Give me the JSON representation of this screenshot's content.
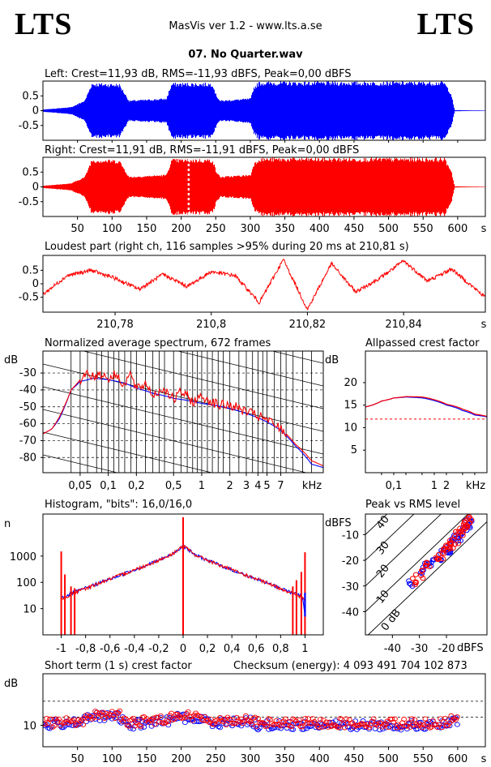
{
  "header": {
    "logo_left": "LTS",
    "logo_right": "LTS",
    "app_title": "MasVis ver 1.2 - www.lts.a.se",
    "file_title": "07. No Quarter.wav",
    "checksum": "Checksum (energy):  4 093 491 704 102 873"
  },
  "chart_data": [
    {
      "id": "left",
      "type": "area",
      "title": "Left: Crest=11,93 dB, RMS=-11,93 dBFS, Peak=0,00 dBFS",
      "color": "#0000ff",
      "yticks": [
        "0.5",
        "0",
        "-0.5"
      ],
      "ylim": [
        -1,
        1
      ],
      "xlim": [
        0,
        640
      ],
      "envelope_x": [
        0,
        40,
        60,
        70,
        110,
        118,
        124,
        178,
        182,
        186,
        245,
        250,
        256,
        300,
        304,
        312,
        580,
        590,
        595,
        640
      ],
      "envelope_amp": [
        0.04,
        0.12,
        0.35,
        0.95,
        0.92,
        0.6,
        0.35,
        0.42,
        0.7,
        0.95,
        0.95,
        0.55,
        0.35,
        0.42,
        0.8,
        0.99,
        0.99,
        0.6,
        0.02,
        0.0
      ]
    },
    {
      "id": "right",
      "type": "area",
      "title": "Right: Crest=11,91 dB, RMS=-11,91 dBFS, Peak=0,00 dBFS",
      "color": "#ff0000",
      "yticks": [
        "0.5",
        "0",
        "-0.5"
      ],
      "ylim": [
        -1,
        1
      ],
      "xlim": [
        0,
        640
      ],
      "envelope_x": [
        0,
        40,
        60,
        70,
        110,
        118,
        124,
        178,
        182,
        186,
        245,
        250,
        256,
        300,
        304,
        312,
        580,
        590,
        595,
        640
      ],
      "envelope_amp": [
        0.04,
        0.12,
        0.35,
        0.95,
        0.92,
        0.6,
        0.35,
        0.42,
        0.7,
        0.95,
        0.95,
        0.55,
        0.35,
        0.42,
        0.8,
        0.99,
        0.99,
        0.6,
        0.02,
        0.0
      ],
      "marker_x": 210.81,
      "xticks": [
        "50",
        "100",
        "150",
        "200",
        "250",
        "300",
        "350",
        "400",
        "450",
        "500",
        "550",
        "600"
      ],
      "xticks_values": [
        50,
        100,
        150,
        200,
        250,
        300,
        350,
        400,
        450,
        500,
        550,
        600
      ],
      "xunit": "s"
    },
    {
      "id": "loudest",
      "type": "line",
      "title": "Loudest part (right ch, 116 samples >95% during 20 ms at 210,81 s)",
      "color": "#ff0000",
      "xlim": [
        210.765,
        210.857
      ],
      "ylim": [
        -1,
        1
      ],
      "yticks": [
        "0.5",
        "0",
        "-0.5"
      ],
      "xticks": [
        "210,78",
        "210,8",
        "210,82",
        "210,84"
      ],
      "xticks_values": [
        210.78,
        210.8,
        210.82,
        210.84
      ],
      "xunit": "s",
      "x": [
        210.765,
        210.77,
        210.775,
        210.78,
        210.785,
        210.79,
        210.795,
        210.8,
        210.805,
        210.81,
        210.815,
        210.82,
        210.825,
        210.83,
        210.835,
        210.84,
        210.845,
        210.85,
        210.857
      ],
      "y": [
        -0.4,
        0.3,
        0.5,
        0.2,
        -0.2,
        0.35,
        -0.1,
        0.45,
        0.3,
        -0.7,
        0.9,
        -0.95,
        0.75,
        -0.3,
        0.2,
        0.85,
        0.1,
        0.55,
        -0.5
      ]
    },
    {
      "id": "spectrum",
      "type": "line",
      "title": "Normalized average spectrum, 672 frames",
      "ylabel": "dB",
      "yticks": [
        "-30",
        "-40",
        "-50",
        "-60",
        "-70",
        "-80"
      ],
      "yticks_values": [
        -30,
        -40,
        -50,
        -60,
        -70,
        -80
      ],
      "ylim": [
        -89,
        -17
      ],
      "xlim": [
        0.02,
        20
      ],
      "xscale": "log",
      "xticks": [
        "0,05",
        "0,1",
        "0,2",
        "0,5",
        "1",
        "2",
        "3",
        "4",
        "5",
        "7"
      ],
      "xticks_values": [
        0.05,
        0.1,
        0.2,
        0.5,
        1,
        2,
        3,
        4,
        5,
        7
      ],
      "xunit": "kHz",
      "series": [
        {
          "color": "#0000ff",
          "x": [
            0.02,
            0.025,
            0.03,
            0.04,
            0.05,
            0.07,
            0.1,
            0.15,
            0.2,
            0.3,
            0.5,
            1,
            2,
            3,
            5,
            7,
            10,
            15,
            20
          ],
          "y": [
            -66,
            -63,
            -57,
            -40,
            -35,
            -33,
            -34,
            -36,
            -39,
            -42,
            -45,
            -48,
            -51,
            -54,
            -59,
            -64,
            -73,
            -84,
            -86
          ]
        },
        {
          "color": "#ff0000",
          "x": [
            0.02,
            0.025,
            0.03,
            0.04,
            0.05,
            0.06,
            0.07,
            0.08,
            0.1,
            0.12,
            0.15,
            0.17,
            0.2,
            0.25,
            0.3,
            0.4,
            0.5,
            0.6,
            0.8,
            1,
            1.5,
            2,
            3,
            5,
            7,
            10,
            15,
            20
          ],
          "y": [
            -66,
            -63,
            -56,
            -40,
            -34,
            -29,
            -33,
            -30,
            -33,
            -31,
            -37,
            -30,
            -40,
            -36,
            -43,
            -39,
            -46,
            -41,
            -47,
            -44,
            -49,
            -49,
            -53,
            -58,
            -63,
            -72,
            -82,
            -85
          ]
        }
      ]
    },
    {
      "id": "allpass",
      "type": "line",
      "title": "Allpassed crest factor",
      "ylabel": "dB",
      "yticks": [
        "20",
        "15",
        "10",
        "5"
      ],
      "yticks_values": [
        20,
        15,
        10,
        5
      ],
      "ylim": [
        0,
        27
      ],
      "xlim": [
        0.02,
        20
      ],
      "xscale": "log",
      "xticks": [
        "0,1",
        "1",
        "2"
      ],
      "xticks_values": [
        0.1,
        1,
        2
      ],
      "xunit": "kHz",
      "reference_level": 11.9,
      "series": [
        {
          "color": "#0000ff",
          "x": [
            0.02,
            0.05,
            0.1,
            0.2,
            0.5,
            1,
            2,
            5,
            10,
            20
          ],
          "y": [
            14.6,
            15.9,
            16.6,
            16.8,
            16.6,
            16.0,
            15.0,
            13.8,
            12.8,
            12.4
          ]
        },
        {
          "color": "#ff0000",
          "x": [
            0.02,
            0.05,
            0.1,
            0.2,
            0.5,
            1,
            2,
            5,
            10,
            20
          ],
          "y": [
            14.6,
            15.9,
            16.6,
            16.9,
            16.8,
            16.2,
            15.2,
            14.1,
            13.0,
            12.5
          ]
        }
      ]
    },
    {
      "id": "histogram",
      "type": "line",
      "title": "Histogram, \"bits\": 16,0/16,0",
      "ylabel": "n",
      "yscale": "log",
      "yticks": [
        "1000",
        "100",
        "10"
      ],
      "yticks_values": [
        1000,
        100,
        10
      ],
      "ylim": [
        1,
        40000
      ],
      "xlim": [
        -1.15,
        1.15
      ],
      "xticks": [
        "-1",
        "-0,8",
        "-0,6",
        "-0,4",
        "-0,2",
        "0",
        "0,2",
        "0,4",
        "0,6",
        "0,8",
        "1"
      ],
      "xticks_values": [
        -1,
        -0.8,
        -0.6,
        -0.4,
        -0.2,
        0,
        0.2,
        0.4,
        0.6,
        0.8,
        1
      ],
      "series": [
        {
          "color": "#0000ff",
          "x": [
            -1.0,
            -0.98,
            -0.9,
            -0.7,
            -0.5,
            -0.3,
            -0.1,
            0,
            0.1,
            0.3,
            0.5,
            0.7,
            0.9,
            0.98,
            1.0
          ],
          "y": [
            25,
            28,
            40,
            90,
            200,
            450,
            1100,
            2500,
            1100,
            450,
            200,
            90,
            40,
            28,
            5
          ]
        },
        {
          "color": "#ff0000",
          "x": [
            -1.0,
            -0.98,
            -0.9,
            -0.7,
            -0.5,
            -0.3,
            -0.1,
            0,
            0.1,
            0.3,
            0.5,
            0.7,
            0.9,
            0.98,
            1.0
          ],
          "y": [
            22,
            26,
            38,
            90,
            200,
            450,
            1100,
            2500,
            1100,
            450,
            200,
            90,
            38,
            26,
            20
          ]
        }
      ],
      "spikes": [
        {
          "x": -1.0,
          "n": 1500
        },
        {
          "x": -0.97,
          "n": 200
        },
        {
          "x": -0.92,
          "n": 70
        },
        {
          "x": -0.89,
          "n": 60
        },
        {
          "x": 0,
          "n": 30000
        },
        {
          "x": 0.9,
          "n": 70
        },
        {
          "x": 0.93,
          "n": 120
        },
        {
          "x": 0.97,
          "n": 250
        },
        {
          "x": 1.0,
          "n": 1400
        }
      ]
    },
    {
      "id": "peakrms",
      "type": "scatter",
      "title": "Peak vs RMS level",
      "ylabel": "dBFS",
      "xunit": "dBFS",
      "yticks": [
        "-10",
        "-20",
        "-30",
        "-40"
      ],
      "yticks_values": [
        -10,
        -20,
        -30,
        -40
      ],
      "xticks": [
        "-40",
        "-30",
        "-20"
      ],
      "xticks_values": [
        -40,
        -30,
        -20
      ],
      "xlim": [
        -50,
        -5
      ],
      "ylim": [
        -49,
        -2
      ],
      "crest_lines": [
        "40",
        "30",
        "20",
        "10",
        "0 dB"
      ],
      "series": [
        {
          "color": "#0000ff",
          "x": [
            -34,
            -29,
            -27,
            -25,
            -23,
            -21,
            -20,
            -19,
            -18,
            -17,
            -16,
            -15,
            -14,
            -13,
            -12,
            -11.5
          ],
          "y": [
            -29,
            -24,
            -21,
            -20,
            -19,
            -17,
            -16,
            -15,
            -13,
            -12,
            -11,
            -10,
            -9,
            -7,
            -6,
            -5
          ]
        },
        {
          "color": "#ff0000",
          "x": [
            -32,
            -30,
            -28,
            -26,
            -24,
            -22,
            -21,
            -20,
            -19,
            -18,
            -17,
            -16,
            -15,
            -14,
            -13,
            -12,
            -11.5
          ],
          "y": [
            -28,
            -27,
            -23,
            -22,
            -20,
            -18,
            -17,
            -16,
            -14,
            -13,
            -12,
            -10,
            -9,
            -8,
            -6,
            -5,
            -4
          ]
        }
      ]
    },
    {
      "id": "shortcrest",
      "type": "scatter",
      "title": "Short term (1 s) crest factor",
      "ylabel": "dB",
      "yticks": [
        "10"
      ],
      "yticks_values": [
        10
      ],
      "ylim": [
        5,
        22
      ],
      "xlim": [
        0,
        640
      ],
      "xticks": [
        "50",
        "100",
        "150",
        "200",
        "250",
        "300",
        "350",
        "400",
        "450",
        "500",
        "550",
        "600"
      ],
      "xticks_values": [
        50,
        100,
        150,
        200,
        250,
        300,
        350,
        400,
        450,
        500,
        550,
        600
      ],
      "xunit": "s",
      "reference_levels": [
        11.9,
        15.6
      ],
      "series": [
        {
          "color": "#0000ff",
          "profile_x": [
            0,
            60,
            70,
            110,
            120,
            180,
            190,
            240,
            250,
            300,
            310,
            580,
            600,
            640
          ],
          "profile_y": [
            10,
            11,
            12,
            12,
            10,
            11,
            12,
            11,
            10.5,
            11,
            10,
            10,
            11,
            13
          ]
        },
        {
          "color": "#ff0000",
          "profile_x": [
            0,
            60,
            70,
            110,
            120,
            180,
            190,
            240,
            250,
            300,
            310,
            580,
            600,
            640
          ],
          "profile_y": [
            10.5,
            11,
            12.5,
            12.5,
            10.5,
            11.5,
            12.5,
            11.5,
            11,
            11.5,
            10.5,
            10.5,
            12,
            15
          ]
        }
      ]
    }
  ]
}
